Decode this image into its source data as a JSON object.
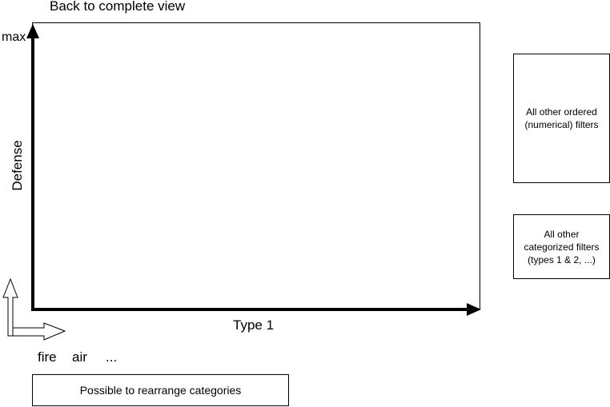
{
  "navigation": {
    "back_label": "Back to complete view"
  },
  "plot": {
    "y_max_label": "max",
    "y_axis_label": "Defense",
    "x_axis_label": "Type 1"
  },
  "categories": [
    "fire",
    "air",
    "..."
  ],
  "notes": {
    "rearrange_label": "Possible to rearrange categories"
  },
  "filters": {
    "ordered_label": "All other ordered\n(numerical) filters",
    "categorized_label": "All other\ncategorized filters\n(types 1 & 2, ...)"
  }
}
